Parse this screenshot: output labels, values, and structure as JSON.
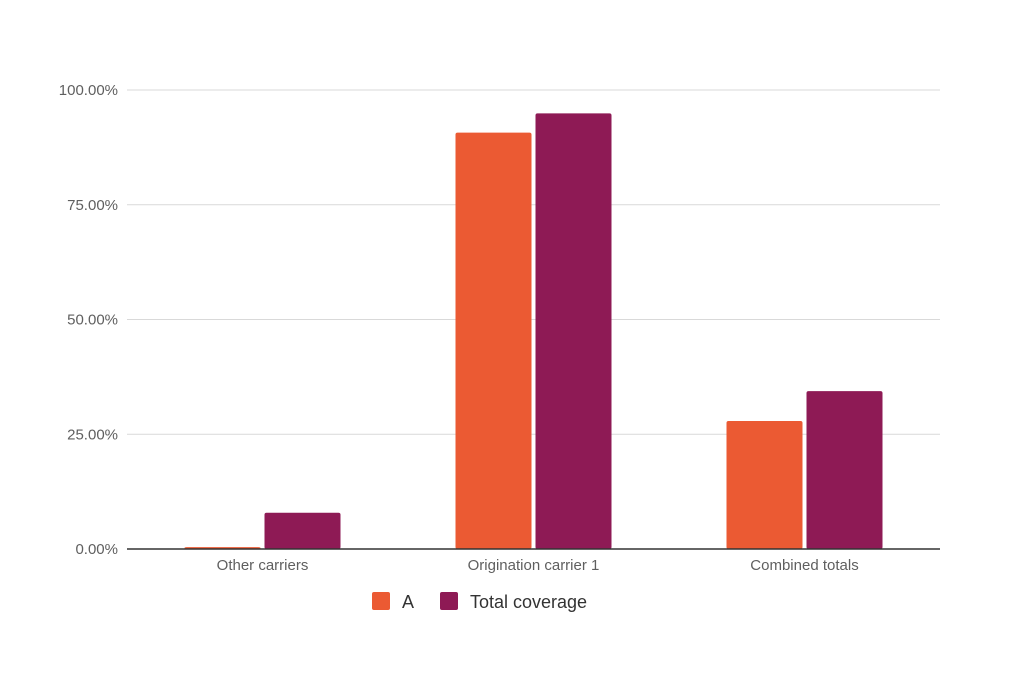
{
  "chart_data": {
    "type": "bar",
    "categories": [
      "Other carriers",
      "Origination carrier 1",
      "Combined totals"
    ],
    "series": [
      {
        "name": "A",
        "color": "#EB5A33",
        "values": [
          0.4,
          90.7,
          27.9
        ]
      },
      {
        "name": "Total coverage",
        "color": "#8E1A55",
        "values": [
          7.9,
          94.9,
          34.4
        ]
      }
    ],
    "ylim": [
      0,
      100
    ],
    "yticks": [
      0,
      25,
      50,
      75,
      100
    ],
    "ytick_labels": [
      "0.00%",
      "25.00%",
      "50.00%",
      "75.00%",
      "100.00%"
    ],
    "grid": true,
    "legend_position": "bottom",
    "xlabel": "",
    "ylabel": "",
    "title": ""
  }
}
